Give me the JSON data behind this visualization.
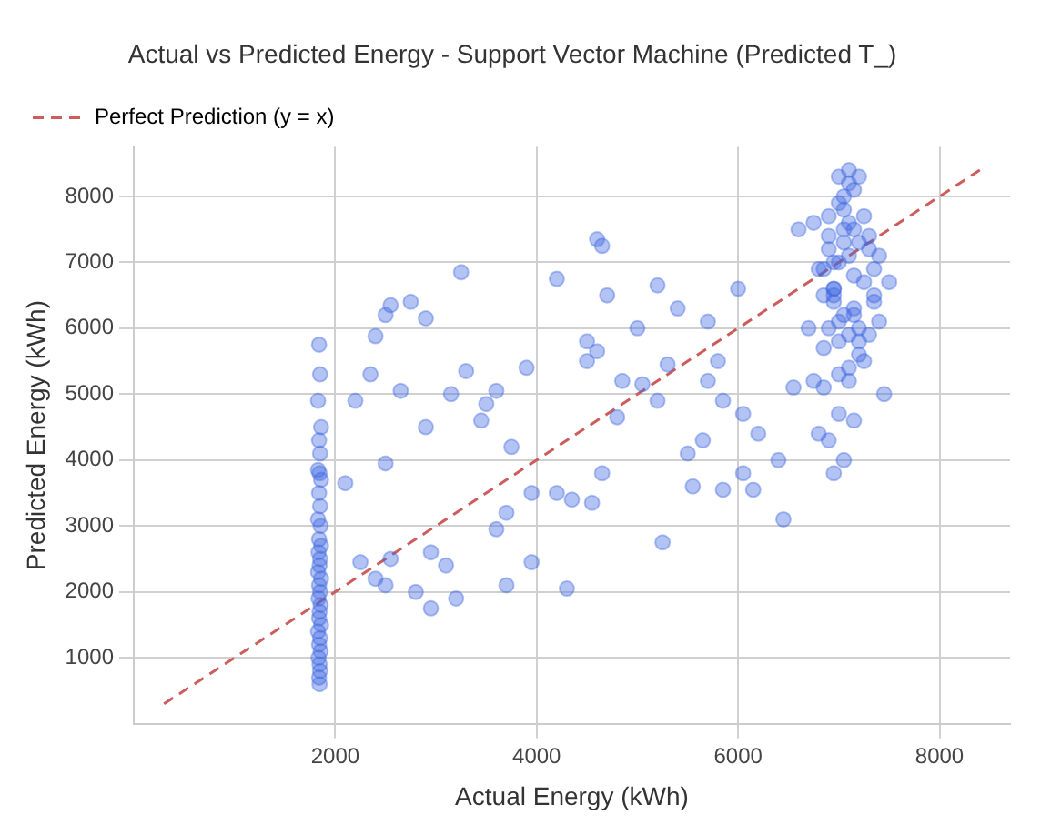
{
  "chart_data": {
    "type": "scatter",
    "title": "Actual vs Predicted Energy - Support Vector Machine (Predicted T_)",
    "xlabel": "Actual Energy (kWh)",
    "ylabel": "Predicted Energy (kWh)",
    "xlim": [
      0,
      8700
    ],
    "ylim": [
      0,
      8750
    ],
    "xticks": [
      2000,
      4000,
      6000,
      8000
    ],
    "yticks": [
      1000,
      2000,
      3000,
      4000,
      5000,
      6000,
      7000,
      8000
    ],
    "grid": true,
    "legend": "top left",
    "marker": "circle",
    "series": [
      {
        "color": "#4169e1",
        "x": [
          1840,
          1850,
          1830,
          1860,
          1840,
          1850,
          1830,
          1845,
          1860,
          1840,
          1850,
          1830,
          1855,
          1840,
          1860,
          1835,
          1850,
          1845,
          1830,
          1860,
          1840,
          1850,
          1835,
          1855,
          1845,
          1840,
          1860,
          1830,
          1850,
          1840,
          1855,
          1835,
          1845,
          1850,
          1840,
          1845,
          2100,
          2200,
          2250,
          2350,
          2400,
          2500,
          2550,
          2500,
          2650,
          2550,
          2500,
          2400,
          2750,
          2900,
          2900,
          2800,
          2950,
          2950,
          3150,
          3100,
          3200,
          3250,
          3300,
          3450,
          3500,
          3600,
          3700,
          3600,
          3700,
          3750,
          3900,
          3950,
          3950,
          4200,
          4200,
          4350,
          4300,
          4500,
          4500,
          4550,
          4600,
          4650,
          4600,
          4650,
          4700,
          4800,
          4850,
          5000,
          5050,
          5200,
          5200,
          5250,
          5300,
          5400,
          5500,
          5550,
          5700,
          5700,
          5650,
          5800,
          5850,
          5850,
          6000,
          6050,
          6050,
          6150,
          6200,
          6400,
          6450,
          6600,
          6550,
          6750,
          6800,
          6850,
          6900,
          6950,
          7000,
          7050,
          7100,
          7150,
          7200,
          7250,
          7300,
          7350,
          7400,
          7450,
          6700,
          6800,
          6850,
          6900,
          6950,
          7000,
          7050,
          7100,
          7150,
          7200,
          7250,
          7300,
          7350,
          7400,
          7500,
          6750,
          6850,
          6900,
          6950,
          7000,
          7050,
          7100,
          7150,
          7200,
          7250,
          7300,
          7350,
          7050,
          6950,
          7000,
          7100,
          7150,
          7200,
          6900,
          7000,
          7100,
          6850,
          6950,
          7050,
          7150,
          7000,
          7100,
          6900,
          7200,
          7000,
          6950,
          7100,
          7050,
          7150
        ],
        "values": [
          5750,
          5300,
          4900,
          4500,
          4300,
          4100,
          3850,
          3800,
          3700,
          3500,
          3300,
          3100,
          3000,
          2800,
          2700,
          2600,
          2500,
          2400,
          2300,
          2200,
          2100,
          2000,
          1900,
          1800,
          1700,
          1600,
          1500,
          1400,
          1300,
          1200,
          1100,
          1000,
          900,
          800,
          700,
          600,
          3650,
          4900,
          2450,
          5300,
          5880,
          6200,
          6350,
          3950,
          5050,
          2500,
          2100,
          2200,
          6400,
          4500,
          6150,
          2000,
          2600,
          1750,
          5000,
          2400,
          1900,
          6850,
          5350,
          4600,
          4850,
          5050,
          3200,
          2950,
          2100,
          4200,
          5400,
          3500,
          2450,
          6750,
          3500,
          3400,
          2050,
          5800,
          5500,
          3350,
          7350,
          7250,
          5650,
          3800,
          6500,
          4650,
          5200,
          6000,
          5150,
          6650,
          4900,
          2750,
          5450,
          6300,
          4100,
          3600,
          6100,
          5200,
          4300,
          5500,
          4900,
          3550,
          6600,
          3800,
          4700,
          3550,
          4400,
          4000,
          3100,
          7500,
          5100,
          5200,
          4400,
          5100,
          4300,
          3800,
          5300,
          4000,
          5900,
          4600,
          6000,
          5500,
          5900,
          6500,
          6100,
          5000,
          6000,
          6900,
          6500,
          7400,
          7000,
          7900,
          6200,
          7600,
          6800,
          7300,
          6700,
          7200,
          6400,
          7100,
          6700,
          7600,
          5700,
          7700,
          6400,
          8300,
          7800,
          8200,
          7500,
          8300,
          7700,
          7400,
          6900,
          8000,
          6600,
          5800,
          7100,
          6300,
          5600,
          7200,
          6100,
          8400,
          6900,
          6500,
          7500,
          6200,
          7000,
          5400,
          6000,
          5800,
          4700,
          6600,
          5200,
          7300,
          8100
        ]
      },
      {
        "type": "line",
        "name": "Perfect Prediction (y = x)",
        "color": "#cd5c5c",
        "line_style": "dashed",
        "marker": "none",
        "x": [
          300,
          8400
        ],
        "values": [
          300,
          8400
        ]
      }
    ]
  }
}
